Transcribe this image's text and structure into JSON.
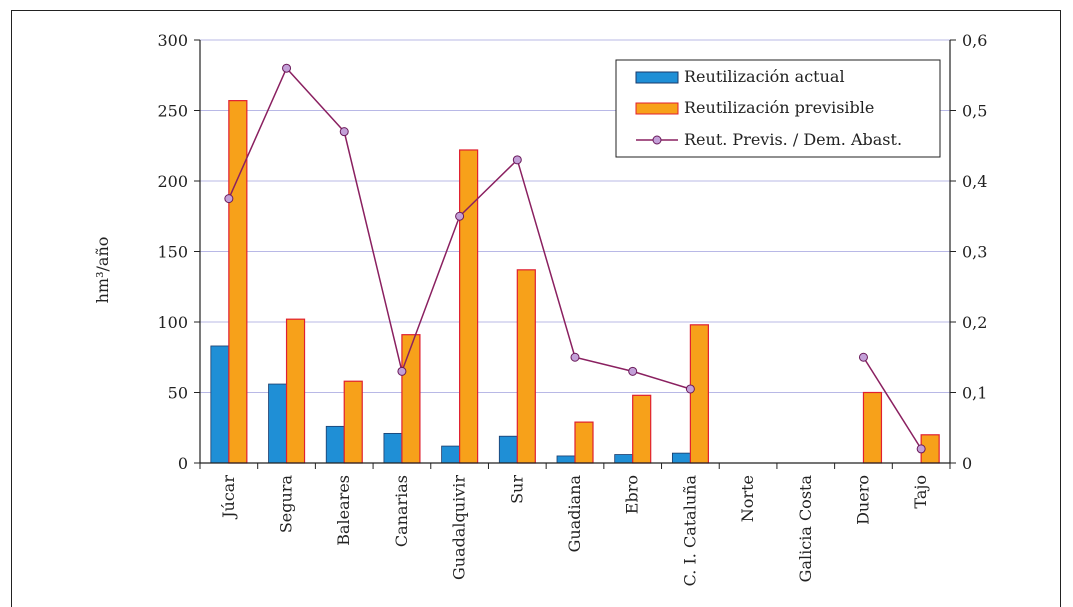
{
  "chart_data": {
    "type": "bar",
    "categories": [
      "Júcar",
      "Segura",
      "Baleares",
      "Canarias",
      "Guadalquivir",
      "Sur",
      "Guadiana",
      "Ebro",
      "C. I. Cataluña",
      "Norte",
      "Galicia Costa",
      "Duero",
      "Tajo"
    ],
    "series": [
      {
        "name": "Reutilización actual",
        "type": "bar",
        "axis": "left",
        "color": "#1f8fd6",
        "values": [
          83,
          56,
          26,
          21,
          12,
          19,
          5,
          6,
          7,
          0,
          0,
          0,
          0
        ]
      },
      {
        "name": "Reutilización previsible",
        "type": "bar",
        "axis": "left",
        "color": "#f7a11a",
        "values": [
          257,
          102,
          58,
          91,
          222,
          137,
          29,
          48,
          98,
          0,
          0,
          50,
          20
        ]
      },
      {
        "name": "Reut. Previs. / Dem. Abast.",
        "type": "line",
        "axis": "right",
        "color": "#8a2060",
        "marker_color": "#c3a0d8",
        "values": [
          0.375,
          0.56,
          0.47,
          0.13,
          0.35,
          0.43,
          0.15,
          0.13,
          0.105,
          null,
          null,
          0.15,
          0.02
        ]
      }
    ],
    "ylabel": "hm³/año",
    "ylim": [
      0,
      300
    ],
    "y2lim": [
      0,
      0.6
    ],
    "yticks": [
      "0",
      "50",
      "100",
      "150",
      "200",
      "250",
      "300"
    ],
    "y2ticks": [
      "0",
      "0,1",
      "0,2",
      "0,3",
      "0,4",
      "0,5",
      "0,6"
    ],
    "grid": true,
    "legend_position": "top-right",
    "colors": {
      "bar_border": "#e02030",
      "grid": "#b8b8e6",
      "axis": "#222222"
    }
  }
}
